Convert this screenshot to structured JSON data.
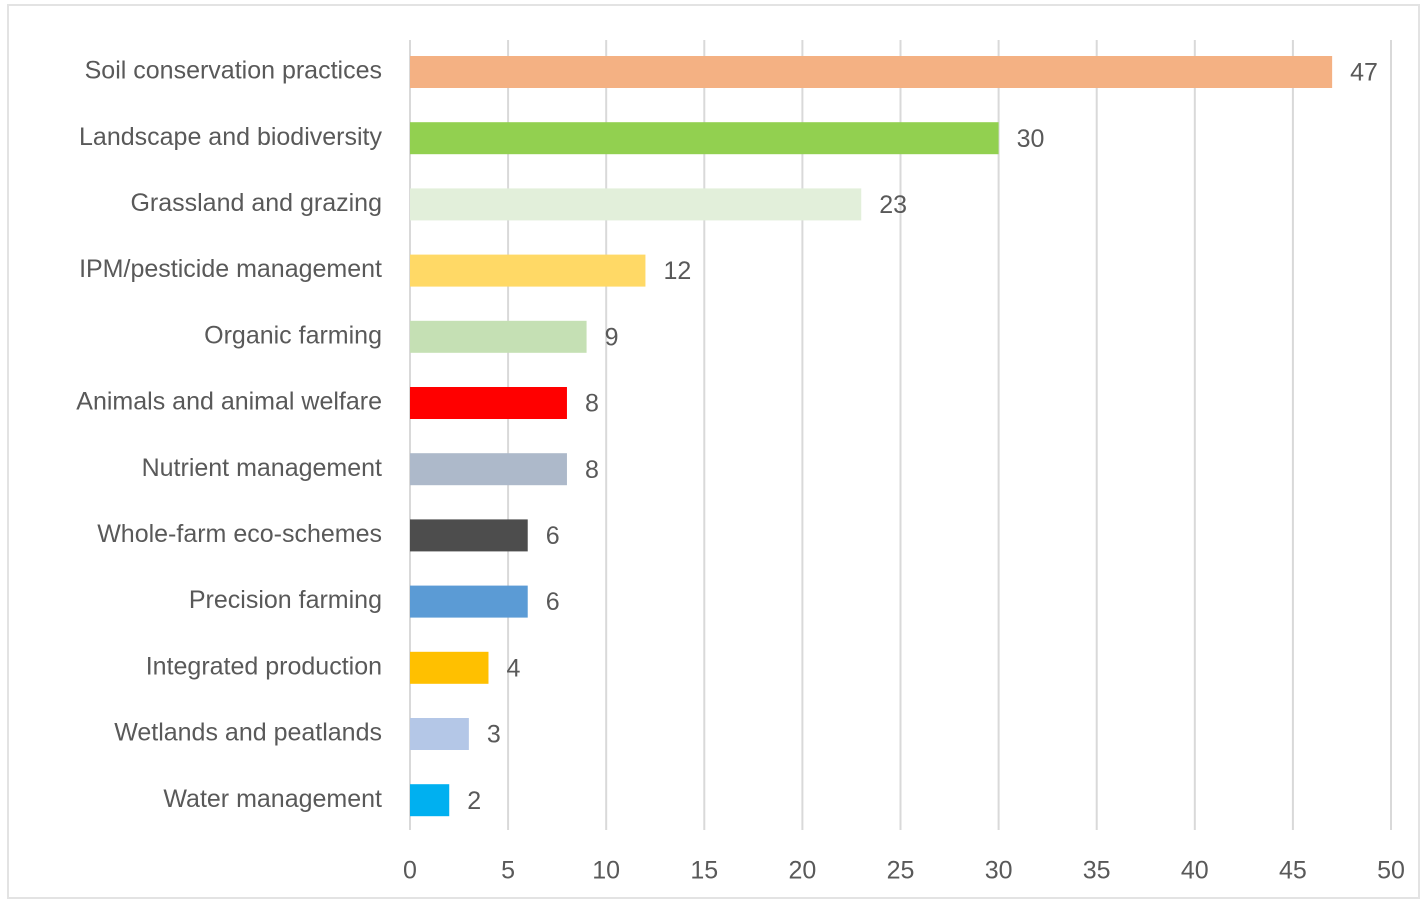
{
  "chart_data": {
    "type": "hbar",
    "categories": [
      "Soil conservation practices",
      "Landscape and biodiversity",
      "Grassland and grazing",
      "IPM/pesticide management",
      "Organic farming",
      "Animals and animal welfare",
      "Nutrient management",
      "Whole-farm eco-schemes",
      "Precision farming",
      "Integrated production",
      "Wetlands and peatlands",
      "Water management"
    ],
    "values": [
      47,
      30,
      23,
      12,
      9,
      8,
      8,
      6,
      6,
      4,
      3,
      2
    ],
    "colors": [
      "#f4b183",
      "#92d050",
      "#e2efda",
      "#ffd966",
      "#c5e0b4",
      "#ff0000",
      "#adb9ca",
      "#4d4d4d",
      "#5b9bd5",
      "#ffc000",
      "#b4c7e7",
      "#00b0f0"
    ],
    "xlim": [
      0,
      50
    ],
    "xticks": [
      0,
      5,
      10,
      15,
      20,
      25,
      30,
      35,
      40,
      45,
      50
    ],
    "grid": true
  }
}
